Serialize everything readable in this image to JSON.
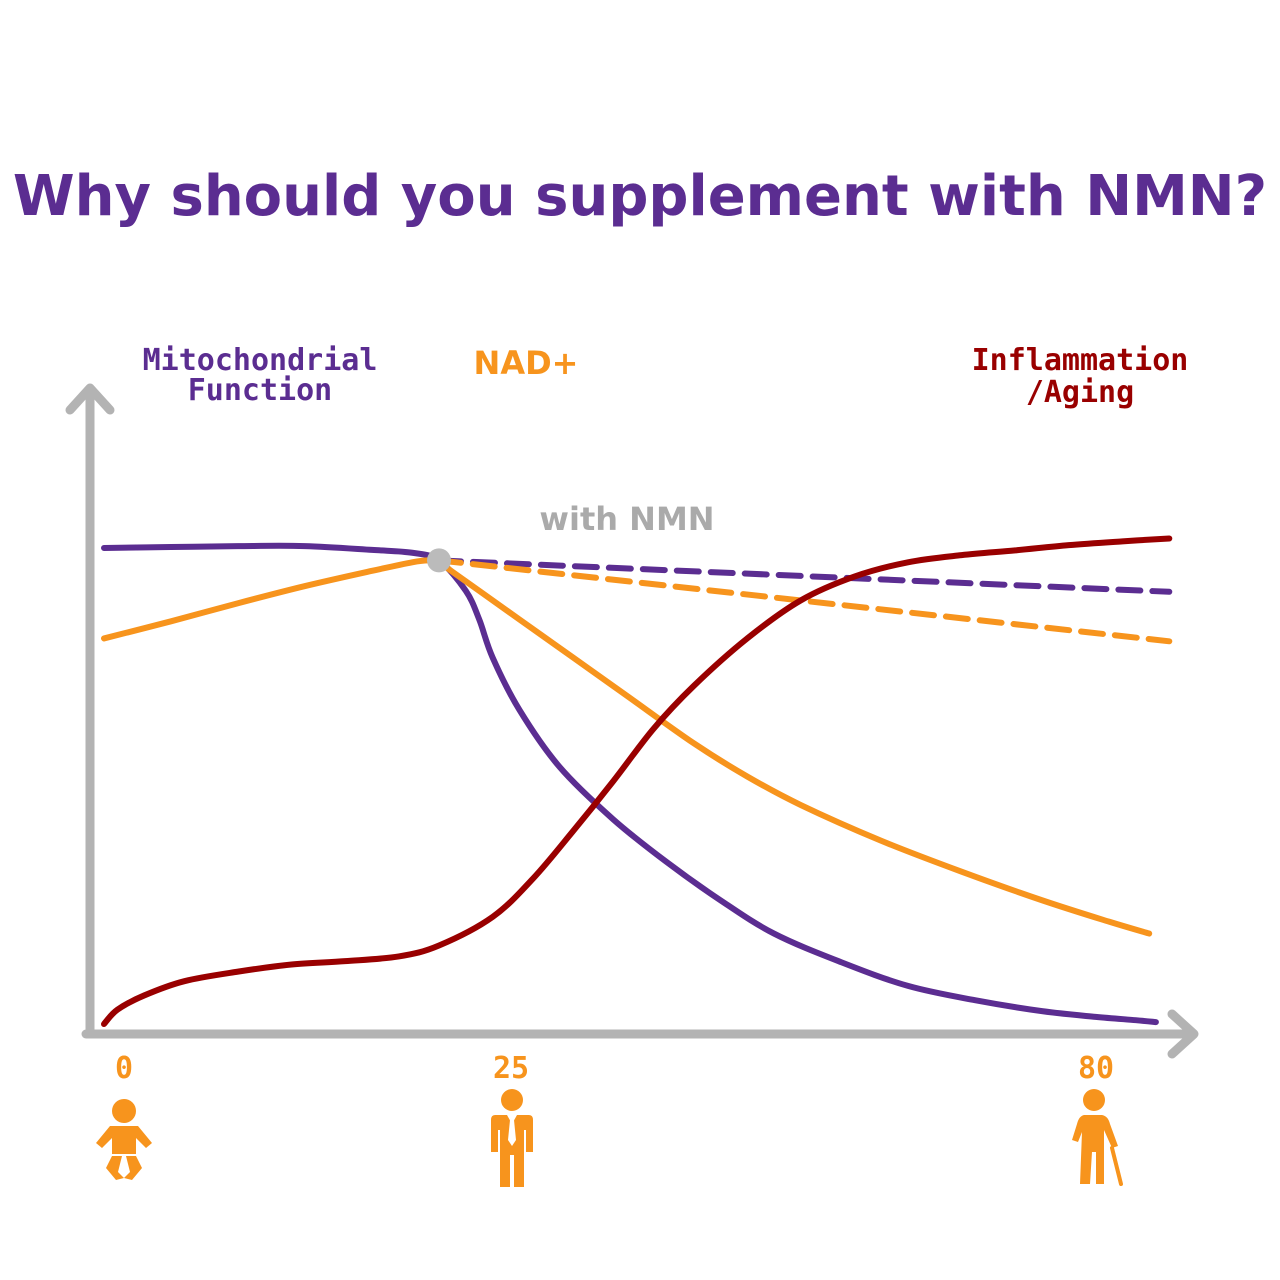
{
  "chart_data": {
    "type": "line",
    "title": "Why should you supplement with NMN?",
    "x_ticks": [
      {
        "value": 0,
        "label": "0",
        "icon": "baby-icon"
      },
      {
        "value": 25,
        "label": "25",
        "icon": "adult-man-icon"
      },
      {
        "value": 80,
        "label": "80",
        "icon": "elderly-person-with-cane-icon"
      }
    ],
    "xlim": [
      0,
      80
    ],
    "ylim": [
      0,
      100
    ],
    "grid": false,
    "series": [
      {
        "key": "mito",
        "name": [
          "Mitochondrial",
          "Function"
        ],
        "color": "#5b2d91",
        "style": "solid",
        "points": [
          [
            0,
            100
          ],
          [
            5,
            100.2
          ],
          [
            10,
            100.4
          ],
          [
            15,
            100.4
          ],
          [
            20,
            99.6
          ],
          [
            23,
            99
          ],
          [
            25,
            97.4
          ],
          [
            27,
            91
          ],
          [
            28,
            85
          ],
          [
            29,
            77
          ],
          [
            31,
            66
          ],
          [
            34,
            54
          ],
          [
            38,
            43
          ],
          [
            42,
            34
          ],
          [
            46,
            26
          ],
          [
            50,
            19
          ],
          [
            55,
            13
          ],
          [
            60,
            8
          ],
          [
            65,
            5
          ],
          [
            70,
            2.7
          ],
          [
            74,
            1.5
          ],
          [
            77,
            0.8
          ],
          [
            78.5,
            0.4
          ]
        ]
      },
      {
        "key": "nad",
        "name": "NAD+",
        "color": "#f7941d",
        "style": "solid",
        "points": [
          [
            0,
            81
          ],
          [
            5,
            84.6
          ],
          [
            10,
            88.4
          ],
          [
            15,
            92
          ],
          [
            20,
            95.2
          ],
          [
            23,
            97
          ],
          [
            24.2,
            97.4
          ],
          [
            25,
            97
          ],
          [
            26,
            95
          ],
          [
            28,
            91
          ],
          [
            31,
            85
          ],
          [
            35,
            77
          ],
          [
            39,
            69
          ],
          [
            44,
            59
          ],
          [
            48,
            52
          ],
          [
            52,
            46
          ],
          [
            58,
            38.5
          ],
          [
            64,
            32
          ],
          [
            70,
            26
          ],
          [
            75,
            21.5
          ],
          [
            78,
            19
          ]
        ]
      },
      {
        "key": "inflam",
        "name": [
          "Inflammation",
          "/Aging"
        ],
        "color": "#990000",
        "style": "solid",
        "points": [
          [
            0,
            0
          ],
          [
            1,
            3
          ],
          [
            3,
            6
          ],
          [
            6,
            9
          ],
          [
            10,
            11
          ],
          [
            14,
            12.5
          ],
          [
            18,
            13.2
          ],
          [
            22,
            14.2
          ],
          [
            25,
            16.5
          ],
          [
            29,
            22.5
          ],
          [
            32,
            30.5
          ],
          [
            35,
            40.5
          ],
          [
            38,
            51
          ],
          [
            41,
            62
          ],
          [
            44,
            71
          ],
          [
            48,
            81
          ],
          [
            52,
            89
          ],
          [
            56,
            94
          ],
          [
            60,
            97
          ],
          [
            64,
            98.5
          ],
          [
            68,
            99.5
          ],
          [
            72,
            100.6
          ],
          [
            76,
            101.4
          ],
          [
            79.5,
            102
          ]
        ]
      },
      {
        "key": "mito_nmn",
        "name": "",
        "color": "#5b2d91",
        "style": "dashed",
        "points": [
          [
            25,
            97.4
          ],
          [
            79.5,
            90.8
          ]
        ]
      },
      {
        "key": "nad_nmn",
        "name": "",
        "color": "#f7941d",
        "style": "dashed",
        "points": [
          [
            25,
            97.4
          ],
          [
            79.5,
            80.4
          ]
        ]
      }
    ],
    "annotations": [
      {
        "text": "with NMN",
        "x": 25,
        "y": 97.4,
        "marker_color": "#bbbbbb"
      }
    ],
    "axis_color": "#b3b3b3",
    "title_color": "#5b2d91",
    "tick_color": "#f7941d",
    "annotation_color": "#aaaaaa"
  }
}
